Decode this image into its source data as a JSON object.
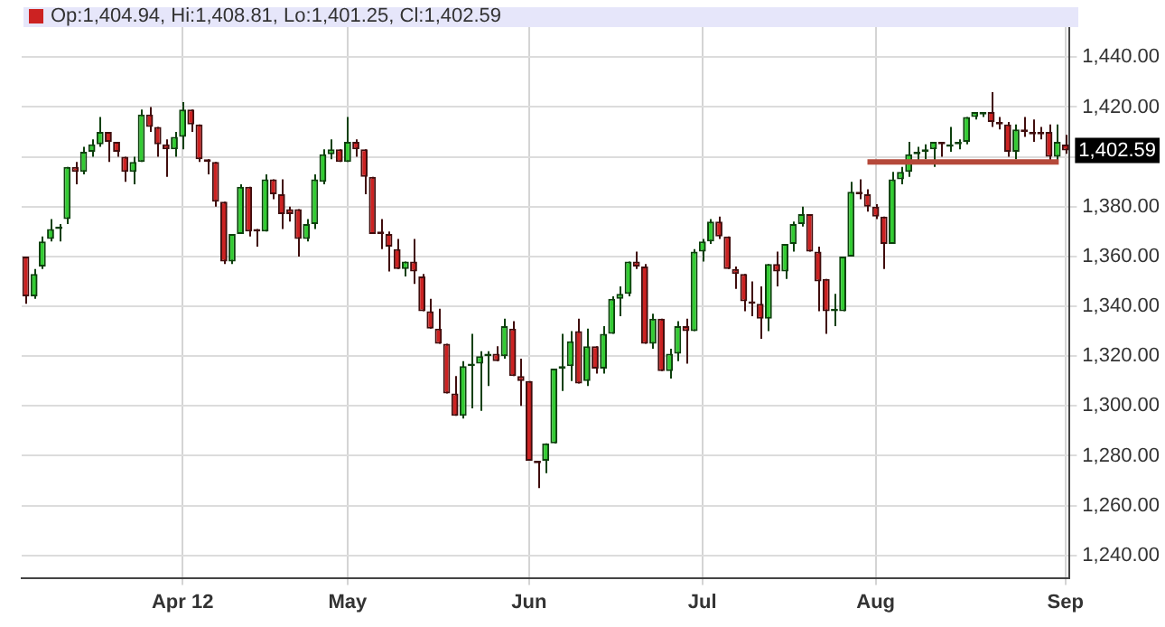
{
  "chart_data": {
    "type": "candlestick",
    "annotations": [
      "Op:1,404.94, Hi:1,408.81, Lo:1,401.25, Cl:1,402.59",
      "1,402.59"
    ],
    "categories": [
      null,
      null,
      null,
      null,
      null,
      null,
      null,
      null,
      null,
      null,
      null,
      null,
      null,
      null,
      null,
      null,
      null,
      null,
      null,
      "Apr 12",
      null,
      null,
      null,
      null,
      null,
      null,
      null,
      null,
      null,
      null,
      null,
      null,
      null,
      null,
      null,
      null,
      null,
      null,
      null,
      "May",
      null,
      null,
      null,
      null,
      null,
      null,
      null,
      null,
      null,
      null,
      null,
      null,
      null,
      null,
      null,
      null,
      null,
      null,
      null,
      null,
      null,
      "Jun",
      null,
      null,
      null,
      null,
      null,
      null,
      null,
      null,
      null,
      null,
      null,
      null,
      null,
      null,
      null,
      null,
      null,
      null,
      null,
      null,
      "Jul",
      null,
      null,
      null,
      null,
      null,
      null,
      null,
      null,
      null,
      null,
      null,
      null,
      null,
      null,
      null,
      null,
      null,
      null,
      null,
      null,
      "Aug",
      null,
      null,
      null,
      null,
      null,
      null,
      null,
      null,
      null,
      null,
      null,
      null,
      null,
      null,
      null,
      null,
      null,
      null,
      null,
      null,
      null,
      null,
      "Sep"
    ],
    "ohlc": [
      [
        1360,
        1360,
        1341,
        1344
      ],
      [
        1344,
        1355,
        1343,
        1353
      ],
      [
        1356,
        1368,
        1355,
        1366
      ],
      [
        1367,
        1375,
        1366,
        1371
      ],
      [
        1371,
        1373,
        1366,
        1372
      ],
      [
        1375,
        1396,
        1373,
        1396
      ],
      [
        1396,
        1398,
        1389,
        1394
      ],
      [
        1394,
        1404,
        1393,
        1402
      ],
      [
        1402,
        1407,
        1400,
        1405
      ],
      [
        1405,
        1416,
        1404,
        1410
      ],
      [
        1410,
        1410,
        1398,
        1406
      ],
      [
        1406,
        1406,
        1400,
        1402
      ],
      [
        1400,
        1400,
        1390,
        1394
      ],
      [
        1394,
        1400,
        1389,
        1398
      ],
      [
        1398,
        1419,
        1398,
        1417
      ],
      [
        1417,
        1420,
        1410,
        1412
      ],
      [
        1412,
        1412,
        1400,
        1405
      ],
      [
        1405,
        1407,
        1392,
        1403
      ],
      [
        1403,
        1410,
        1400,
        1408
      ],
      [
        1408,
        1422,
        1403,
        1419
      ],
      [
        1419,
        1419,
        1410,
        1413
      ],
      [
        1413,
        1413,
        1398,
        1399
      ],
      [
        1399,
        1399,
        1393,
        1398
      ],
      [
        1398,
        1398,
        1380,
        1382
      ],
      [
        1382,
        1382,
        1357,
        1358
      ],
      [
        1358,
        1369,
        1357,
        1369
      ],
      [
        1369,
        1389,
        1369,
        1388
      ],
      [
        1388,
        1388,
        1368,
        1370
      ],
      [
        1371,
        1371,
        1364,
        1370
      ],
      [
        1370,
        1393,
        1370,
        1391
      ],
      [
        1391,
        1391,
        1383,
        1385
      ],
      [
        1385,
        1391,
        1371,
        1377
      ],
      [
        1379,
        1380,
        1374,
        1377
      ],
      [
        1379,
        1379,
        1360,
        1367
      ],
      [
        1367,
        1375,
        1366,
        1373
      ],
      [
        1373,
        1393,
        1371,
        1391
      ],
      [
        1390,
        1403,
        1389,
        1401
      ],
      [
        1401,
        1407,
        1399,
        1403
      ],
      [
        1403,
        1403,
        1398,
        1398
      ],
      [
        1398,
        1416,
        1398,
        1406
      ],
      [
        1406,
        1407,
        1400,
        1403
      ],
      [
        1403,
        1403,
        1385,
        1392
      ],
      [
        1392,
        1392,
        1369,
        1369
      ],
      [
        1370,
        1375,
        1363,
        1369
      ],
      [
        1369,
        1370,
        1354,
        1364
      ],
      [
        1363,
        1367,
        1355,
        1355
      ],
      [
        1355,
        1358,
        1352,
        1358
      ],
      [
        1358,
        1367,
        1349,
        1354
      ],
      [
        1352,
        1353,
        1338,
        1338
      ],
      [
        1338,
        1343,
        1331,
        1331
      ],
      [
        1331,
        1339,
        1325,
        1325
      ],
      [
        1325,
        1325,
        1305,
        1305
      ],
      [
        1305,
        1312,
        1296,
        1296
      ],
      [
        1296,
        1318,
        1295,
        1316
      ],
      [
        1316,
        1329,
        1299,
        1317
      ],
      [
        1317,
        1322,
        1298,
        1320
      ],
      [
        1320,
        1322,
        1308,
        1321
      ],
      [
        1321,
        1324,
        1318,
        1318
      ],
      [
        1320,
        1335,
        1319,
        1332
      ],
      [
        1331,
        1334,
        1312,
        1312
      ],
      [
        1312,
        1319,
        1300,
        1310
      ],
      [
        1310,
        1310,
        1278,
        1278
      ],
      [
        1278,
        1278,
        1267,
        1277
      ],
      [
        1278,
        1285,
        1273,
        1285
      ],
      [
        1285,
        1315,
        1285,
        1315
      ],
      [
        1315,
        1329,
        1306,
        1316
      ],
      [
        1316,
        1330,
        1310,
        1326
      ],
      [
        1330,
        1335,
        1309,
        1309
      ],
      [
        1310,
        1331,
        1308,
        1324
      ],
      [
        1324,
        1324,
        1313,
        1315
      ],
      [
        1315,
        1332,
        1313,
        1329
      ],
      [
        1329,
        1344,
        1329,
        1343
      ],
      [
        1343,
        1348,
        1336,
        1345
      ],
      [
        1345,
        1358,
        1344,
        1358
      ],
      [
        1358,
        1362,
        1355,
        1356
      ],
      [
        1356,
        1357,
        1325,
        1325
      ],
      [
        1325,
        1337,
        1323,
        1335
      ],
      [
        1335,
        1335,
        1314,
        1314
      ],
      [
        1314,
        1323,
        1311,
        1321
      ],
      [
        1321,
        1334,
        1318,
        1332
      ],
      [
        1332,
        1335,
        1317,
        1330
      ],
      [
        1330,
        1363,
        1330,
        1362
      ],
      [
        1362,
        1367,
        1358,
        1366
      ],
      [
        1366,
        1375,
        1365,
        1374
      ],
      [
        1374,
        1376,
        1367,
        1368
      ],
      [
        1368,
        1368,
        1355,
        1355
      ],
      [
        1355,
        1356,
        1347,
        1353
      ],
      [
        1353,
        1353,
        1338,
        1342
      ],
      [
        1342,
        1350,
        1336,
        1341
      ],
      [
        1341,
        1348,
        1327,
        1335
      ],
      [
        1335,
        1357,
        1330,
        1357
      ],
      [
        1357,
        1362,
        1348,
        1354
      ],
      [
        1354,
        1365,
        1351,
        1365
      ],
      [
        1365,
        1374,
        1362,
        1373
      ],
      [
        1373,
        1380,
        1372,
        1377
      ],
      [
        1377,
        1377,
        1362,
        1362
      ],
      [
        1362,
        1364,
        1338,
        1350
      ],
      [
        1351,
        1351,
        1329,
        1338
      ],
      [
        1338,
        1345,
        1332,
        1339
      ],
      [
        1338,
        1360,
        1338,
        1360
      ],
      [
        1360,
        1390,
        1360,
        1386
      ],
      [
        1386,
        1391,
        1383,
        1385
      ],
      [
        1385,
        1387,
        1378,
        1380
      ],
      [
        1380,
        1381,
        1375,
        1376
      ],
      [
        1376,
        1376,
        1355,
        1365
      ],
      [
        1365,
        1394,
        1365,
        1391
      ],
      [
        1391,
        1396,
        1389,
        1394
      ],
      [
        1394,
        1406,
        1392,
        1401
      ],
      [
        1401,
        1404,
        1398,
        1402
      ],
      [
        1402,
        1405,
        1399,
        1403
      ],
      [
        1403,
        1406,
        1396,
        1406
      ],
      [
        1406,
        1406,
        1400,
        1405
      ],
      [
        1404,
        1412,
        1402,
        1405
      ],
      [
        1405,
        1407,
        1403,
        1406
      ],
      [
        1406,
        1416,
        1405,
        1416
      ],
      [
        1416,
        1418,
        1415,
        1418
      ],
      [
        1417,
        1418,
        1416,
        1418
      ],
      [
        1418,
        1426,
        1412,
        1414
      ],
      [
        1414,
        1416,
        1411,
        1413
      ],
      [
        1413,
        1414,
        1400,
        1402
      ],
      [
        1402,
        1413,
        1399,
        1411
      ],
      [
        1411,
        1416,
        1408,
        1410
      ],
      [
        1410,
        1415,
        1406,
        1409
      ],
      [
        1410,
        1412,
        1407,
        1409
      ],
      [
        1410,
        1413,
        1398,
        1400
      ],
      [
        1400,
        1413,
        1397,
        1406
      ],
      [
        1404.94,
        1408.81,
        1401.25,
        1402.59
      ]
    ],
    "ylim": [
      1231,
      1456
    ],
    "yticks": [
      {
        "value": 1240,
        "label": "1,240.00"
      },
      {
        "value": 1260,
        "label": "1,260.00"
      },
      {
        "value": 1280,
        "label": "1,280.00"
      },
      {
        "value": 1300,
        "label": "1,300.00"
      },
      {
        "value": 1320,
        "label": "1,320.00"
      },
      {
        "value": 1340,
        "label": "1,340.00"
      },
      {
        "value": 1360,
        "label": "1,360.00"
      },
      {
        "value": 1380,
        "label": "1,380.00"
      },
      {
        "value": 1400,
        "label": null
      },
      {
        "value": 1420,
        "label": "1,420.00"
      },
      {
        "value": 1440,
        "label": "1,440.00"
      }
    ],
    "ref_lines": [
      {
        "axis": "y",
        "value": 1398,
        "color": "#b5493a"
      }
    ],
    "grid": true,
    "legend": false
  }
}
